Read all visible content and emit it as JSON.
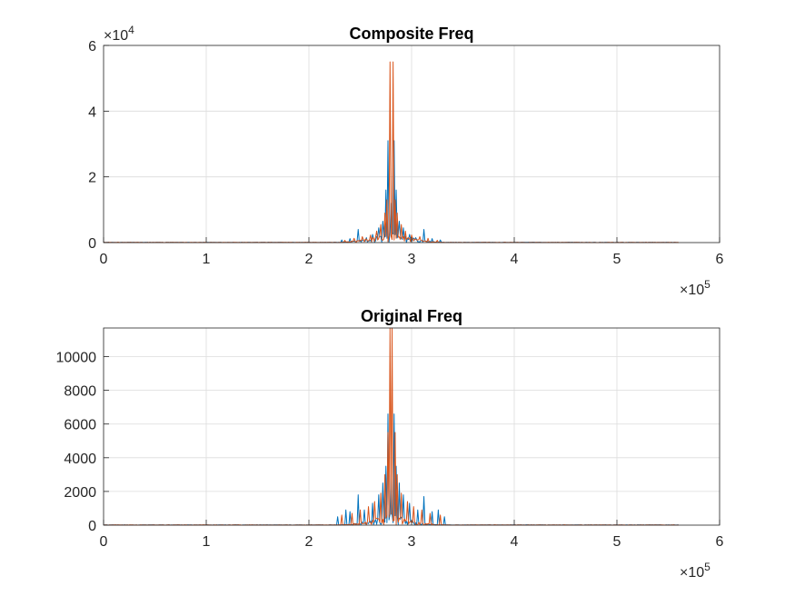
{
  "chart_data": [
    {
      "type": "line",
      "title": "Composite Freq",
      "xlabel": "",
      "ylabel": "",
      "xlim": [
        0,
        600000
      ],
      "ylim": [
        0,
        60000
      ],
      "x_ticks": [
        0,
        100000,
        200000,
        300000,
        400000,
        500000,
        600000
      ],
      "x_tick_labels": [
        "0",
        "1",
        "2",
        "3",
        "4",
        "5",
        "6"
      ],
      "x_exponent_label": "×10",
      "x_exponent": "5",
      "y_ticks": [
        0,
        20000,
        40000,
        60000
      ],
      "y_tick_labels": [
        "0",
        "2",
        "4",
        "6"
      ],
      "y_exponent_label": "×10",
      "y_exponent": "4",
      "grid": true,
      "x_range_of_data": [
        0,
        560000
      ],
      "series": [
        {
          "color": "#0072BD",
          "peaks": [
            [
              232000,
              800
            ],
            [
              240000,
              1200
            ],
            [
              248000,
              4000
            ],
            [
              256000,
              1500
            ],
            [
              262000,
              2500
            ],
            [
              268000,
              4500
            ],
            [
              272000,
              6500
            ],
            [
              275000,
              16000
            ],
            [
              277000,
              31000
            ],
            [
              280000,
              12000
            ],
            [
              283000,
              31000
            ],
            [
              285000,
              16000
            ],
            [
              288000,
              6500
            ],
            [
              292000,
              4500
            ],
            [
              298000,
              2500
            ],
            [
              304000,
              1500
            ],
            [
              312000,
              4000
            ],
            [
              320000,
              1200
            ],
            [
              328000,
              800
            ]
          ]
        },
        {
          "color": "#D95319",
          "peaks": [
            [
              235000,
              700
            ],
            [
              244000,
              1300
            ],
            [
              252000,
              1800
            ],
            [
              260000,
              2300
            ],
            [
              266000,
              3500
            ],
            [
              270000,
              5500
            ],
            [
              274000,
              9000
            ],
            [
              276000,
              13000
            ],
            [
              278500,
              55000
            ],
            [
              281500,
              55000
            ],
            [
              284000,
              13000
            ],
            [
              286000,
              9000
            ],
            [
              290000,
              5500
            ],
            [
              294000,
              3500
            ],
            [
              300000,
              2300
            ],
            [
              308000,
              1800
            ],
            [
              316000,
              1300
            ],
            [
              325000,
              700
            ]
          ]
        }
      ]
    },
    {
      "type": "line",
      "title": "Original Freq",
      "xlabel": "",
      "ylabel": "",
      "xlim": [
        0,
        600000
      ],
      "ylim": [
        0,
        11700
      ],
      "x_ticks": [
        0,
        100000,
        200000,
        300000,
        400000,
        500000,
        600000
      ],
      "x_tick_labels": [
        "0",
        "1",
        "2",
        "3",
        "4",
        "5",
        "6"
      ],
      "x_exponent_label": "×10",
      "x_exponent": "5",
      "y_ticks": [
        0,
        2000,
        4000,
        6000,
        8000,
        10000
      ],
      "y_tick_labels": [
        "0",
        "2000",
        "4000",
        "6000",
        "8000",
        "10000"
      ],
      "grid": true,
      "x_range_of_data": [
        0,
        560000
      ],
      "series": [
        {
          "color": "#0072BD",
          "peaks": [
            [
              228000,
              500
            ],
            [
              236000,
              900
            ],
            [
              240000,
              800
            ],
            [
              248000,
              1800
            ],
            [
              254000,
              900
            ],
            [
              262000,
              1300
            ],
            [
              268000,
              1800
            ],
            [
              272000,
              2500
            ],
            [
              275000,
              3500
            ],
            [
              277000,
              6600
            ],
            [
              280000,
              3000
            ],
            [
              283000,
              6600
            ],
            [
              285000,
              3500
            ],
            [
              288000,
              2500
            ],
            [
              292000,
              1800
            ],
            [
              298000,
              1300
            ],
            [
              306000,
              900
            ],
            [
              312000,
              1700
            ],
            [
              320000,
              800
            ],
            [
              326000,
              900
            ],
            [
              332000,
              500
            ]
          ]
        },
        {
          "color": "#D95319",
          "peaks": [
            [
              232000,
              600
            ],
            [
              242000,
              700
            ],
            [
              250000,
              900
            ],
            [
              258000,
              1100
            ],
            [
              264000,
              1400
            ],
            [
              270000,
              1900
            ],
            [
              274000,
              3000
            ],
            [
              276500,
              5500
            ],
            [
              278800,
              11700
            ],
            [
              281200,
              11700
            ],
            [
              283500,
              5500
            ],
            [
              286000,
              3000
            ],
            [
              290000,
              1900
            ],
            [
              296000,
              1400
            ],
            [
              302000,
              1100
            ],
            [
              310000,
              900
            ],
            [
              318000,
              700
            ],
            [
              328000,
              600
            ]
          ]
        }
      ]
    }
  ]
}
